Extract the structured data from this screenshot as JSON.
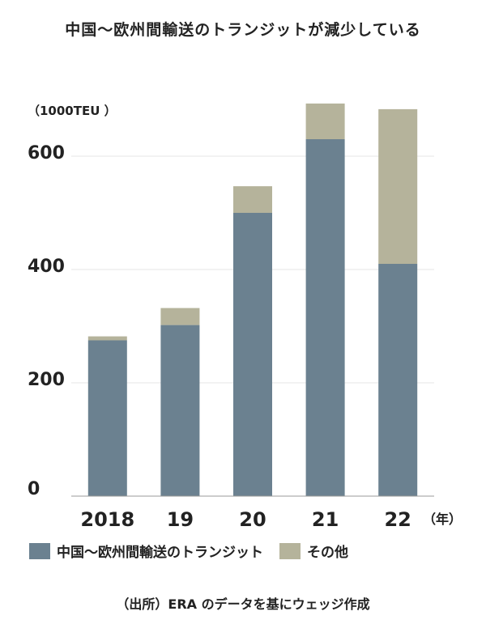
{
  "chart_data": {
    "type": "bar",
    "stacked": true,
    "title": "中国～欧州間輸送のトランジットが減少している",
    "ylabel": "（1000TEU ）",
    "x_unit": "（年）",
    "categories": [
      "2018",
      "19",
      "20",
      "21",
      "22"
    ],
    "series": [
      {
        "name": "中国～欧州間輸送のトランジット",
        "color": "#6b8190",
        "values": [
          275,
          302,
          500,
          630,
          410
        ]
      },
      {
        "name": "その他",
        "color": "#b5b39b",
        "values": [
          7,
          30,
          47,
          63,
          273
        ]
      }
    ],
    "yticks": [
      "0",
      "200",
      "400",
      "600"
    ],
    "ylim": [
      0,
      700
    ],
    "grid": true,
    "legend_position": "bottom"
  },
  "source": "（出所）ERA のデータを基にウェッジ作成"
}
